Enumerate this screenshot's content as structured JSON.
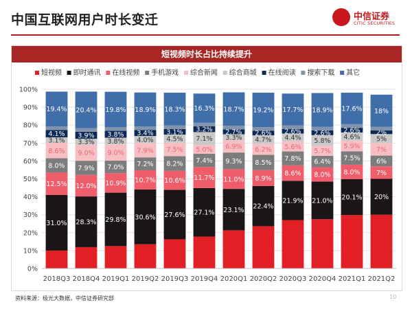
{
  "header": {
    "title": "中国互联网用户时长变迁",
    "logo_cn": "中信证券",
    "logo_en": "CITIC SECURITIES"
  },
  "panel_title": "短视频时长占比持续提升",
  "footer": {
    "source": "资料来源：极光大数据，中信证券研究部",
    "page": "10"
  },
  "colors": {
    "brand_red": "#c8161d",
    "bar_title_bg": "#a82724"
  },
  "chart_data": {
    "type": "bar",
    "stacked": true,
    "percent": true,
    "title": "短视频时长占比持续提升",
    "ylim": [
      0,
      100
    ],
    "yticks": [
      "0%",
      "10%",
      "20%",
      "30%",
      "40%",
      "50%",
      "60%",
      "70%",
      "80%",
      "90%",
      "100%"
    ],
    "grid": true,
    "legend_position": "top",
    "categories": [
      "2018Q3",
      "2018Q4",
      "2019Q1",
      "2019Q2",
      "2019Q3",
      "2019Q4",
      "2020Q1",
      "2020Q2",
      "2020Q3",
      "2020Q4",
      "2021Q1",
      "2021Q2"
    ],
    "series": [
      {
        "name": "短视频",
        "color": "#e31f26",
        "values": [
          10.0,
          11.9,
          12.5,
          13.5,
          16.3,
          17.8,
          21.3,
          23.6,
          27.0,
          27.5,
          29.8,
          30.0
        ],
        "labels": [
          "",
          "",
          "",
          "",
          "",
          "",
          "",
          "",
          "",
          "",
          "",
          ""
        ]
      },
      {
        "name": "即时通讯",
        "color": "#1c1516",
        "values": [
          31.0,
          28.3,
          29.8,
          30.6,
          27.6,
          27.1,
          23.1,
          22.4,
          21.9,
          21.0,
          20.1,
          20.0
        ],
        "labels": [
          "31.0%",
          "28.3%",
          "29.8%",
          "30.6%",
          "27.6%",
          "27.1%",
          "23.1%",
          "22.4%",
          "21.9%",
          "21.0%",
          "20.1%",
          "20%"
        ]
      },
      {
        "name": "在线视频",
        "color": "#ef5d6b",
        "values": [
          12.5,
          12.0,
          10.9,
          10.7,
          10.6,
          11.7,
          11.0,
          8.9,
          8.6,
          8.0,
          8.0,
          7.0
        ],
        "labels": [
          "12.5%",
          "12.0%",
          "10.9%",
          "10.7%",
          "10.6%",
          "11.7%",
          "11.0%",
          "8.9%",
          "8.6%",
          "8.0%",
          "8.0%",
          "7%"
        ]
      },
      {
        "name": "手机游戏",
        "color": "#7c7c7c",
        "values": [
          8.0,
          7.9,
          7.0,
          7.2,
          8.2,
          7.4,
          9.3,
          8.5,
          7.8,
          6.4,
          7.5,
          6.0
        ],
        "labels": [
          "8.0%",
          "7.9%",
          "7.0%",
          "7.2%",
          "8.2%",
          "7.4%",
          "9.3%",
          "8.5%",
          "7.8%",
          "6.4%",
          "7.5%",
          "6%"
        ]
      },
      {
        "name": "综合新闻",
        "color": "#f7bfc3",
        "values": [
          8.6,
          9.0,
          9.0,
          7.9,
          7.5,
          5.0,
          6.9,
          6.2,
          5.6,
          5.7,
          5.9,
          7.0
        ],
        "labels": [
          "8.6%",
          "9.0%",
          "9.0%",
          "7.9%",
          "7.5%",
          "5.0%",
          "6.9%",
          "6.2%",
          "5.6%",
          "5.7%",
          "5.9%",
          "7%"
        ]
      },
      {
        "name": "综合商城",
        "color": "#c9c9c9",
        "values": [
          3.1,
          3.3,
          3.8,
          4.0,
          4.5,
          7.1,
          3.3,
          4.7,
          4.4,
          5.8,
          4.6,
          5.0
        ],
        "labels": [
          "3.1%",
          "3.3%",
          "3.8%",
          "4.0%",
          "4.5%",
          "7.1%",
          "3.3%",
          "4.7%",
          "4.4%",
          "5.8%",
          "4.6%",
          "5%"
        ]
      },
      {
        "name": "在线阅读",
        "color": "#0d2a56",
        "values": [
          4.1,
          3.9,
          3.8,
          3.4,
          3.1,
          3.2,
          2.7,
          2.6,
          2.6,
          2.6,
          2.6,
          2.0
        ],
        "labels": [
          "4.1%",
          "3.9%",
          "3.8%",
          "3.4%",
          "3.1%",
          "3.2%",
          "2.7%",
          "2.6%",
          "2.6%",
          "2.6%",
          "2.6%",
          "2%"
        ]
      },
      {
        "name": "搜索下载",
        "color": "#8193ad",
        "values": [
          2.0,
          2.0,
          2.0,
          2.0,
          2.0,
          2.0,
          2.0,
          2.0,
          2.0,
          2.0,
          2.0,
          2.0
        ],
        "labels": [
          "",
          "",
          "",
          "",
          "",
          "",
          "",
          "",
          "",
          "",
          "",
          ""
        ]
      },
      {
        "name": "其它",
        "color": "#3f6ea8",
        "values": [
          19.4,
          20.4,
          19.8,
          18.9,
          18.3,
          16.3,
          18.7,
          19.2,
          17.7,
          18.9,
          17.6,
          18.0
        ],
        "labels": [
          "19.4%",
          "20.4%",
          "19.8%",
          "18.9%",
          "18.3%",
          "16.3%",
          "18.7%",
          "19.2%",
          "17.7%",
          "18.9%",
          "17.6%",
          "18%"
        ]
      }
    ]
  }
}
